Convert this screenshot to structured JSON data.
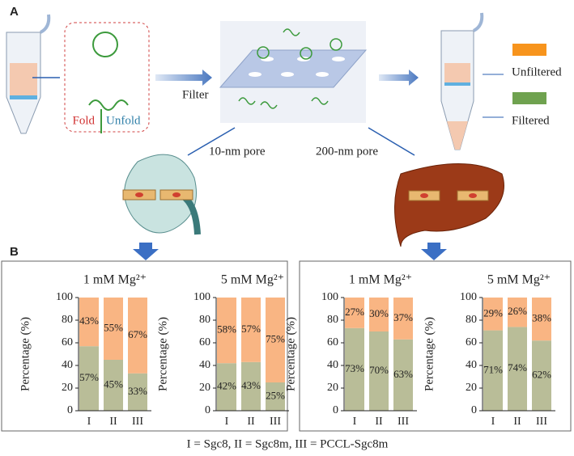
{
  "panel_labels": [
    "A",
    "B"
  ],
  "diagram": {
    "fold": "Fold",
    "unfold": "Unfold",
    "filter": "Filter",
    "pore_small": "10-nm pore",
    "pore_large": "200-nm pore"
  },
  "legend": [
    {
      "label": "Unfiltered",
      "color": "#f7941d"
    },
    {
      "label": "Filtered",
      "color": "#6fa24f"
    }
  ],
  "caption": "I = Sgc8, II = Sgc8m, III = PCCL-Sgc8m",
  "chart_data": [
    {
      "type": "bar",
      "stacked": true,
      "title": "1 mM Mg²⁺",
      "ylabel": "Percentage (%)",
      "categories": [
        "I",
        "II",
        "III"
      ],
      "ylim": [
        0,
        100
      ],
      "yticks": [
        0,
        20,
        40,
        60,
        80,
        100
      ],
      "series": [
        {
          "color": "#b9bd98",
          "values": [
            57,
            45,
            33
          ],
          "value_labels": [
            "57%",
            "45%",
            "33%"
          ]
        },
        {
          "color": "#f9b583",
          "values": [
            43,
            55,
            67
          ],
          "value_labels": [
            "43%",
            "55%",
            "67%"
          ]
        }
      ]
    },
    {
      "type": "bar",
      "stacked": true,
      "title": "5 mM Mg²⁺",
      "ylabel": "Percentage (%)",
      "categories": [
        "I",
        "II",
        "III"
      ],
      "ylim": [
        0,
        100
      ],
      "yticks": [
        0,
        20,
        40,
        60,
        80,
        100
      ],
      "series": [
        {
          "color": "#b9bd98",
          "values": [
            42,
            43,
            25
          ],
          "value_labels": [
            "42%",
            "43%",
            "25%"
          ]
        },
        {
          "color": "#f9b583",
          "values": [
            58,
            57,
            75
          ],
          "value_labels": [
            "58%",
            "57%",
            "75%"
          ]
        }
      ]
    },
    {
      "type": "bar",
      "stacked": true,
      "title": "1 mM Mg²⁺",
      "ylabel": "Percentage (%)",
      "categories": [
        "I",
        "II",
        "III"
      ],
      "ylim": [
        0,
        100
      ],
      "yticks": [
        0,
        20,
        40,
        60,
        80,
        100
      ],
      "series": [
        {
          "color": "#b9bd98",
          "values": [
            73,
            70,
            63
          ],
          "value_labels": [
            "73%",
            "70%",
            "63%"
          ]
        },
        {
          "color": "#f9b583",
          "values": [
            27,
            30,
            37
          ],
          "value_labels": [
            "27%",
            "30%",
            "37%"
          ]
        }
      ]
    },
    {
      "type": "bar",
      "stacked": true,
      "title": "5 mM Mg²⁺",
      "ylabel": "Percentage (%)",
      "categories": [
        "I",
        "II",
        "III"
      ],
      "ylim": [
        0,
        100
      ],
      "yticks": [
        0,
        20,
        40,
        60,
        80,
        100
      ],
      "series": [
        {
          "color": "#b9bd98",
          "values": [
            71,
            74,
            62
          ],
          "value_labels": [
            "71%",
            "74%",
            "62%"
          ]
        },
        {
          "color": "#f9b583",
          "values": [
            29,
            26,
            38
          ],
          "value_labels": [
            "29%",
            "26%",
            "38%"
          ]
        }
      ]
    }
  ]
}
